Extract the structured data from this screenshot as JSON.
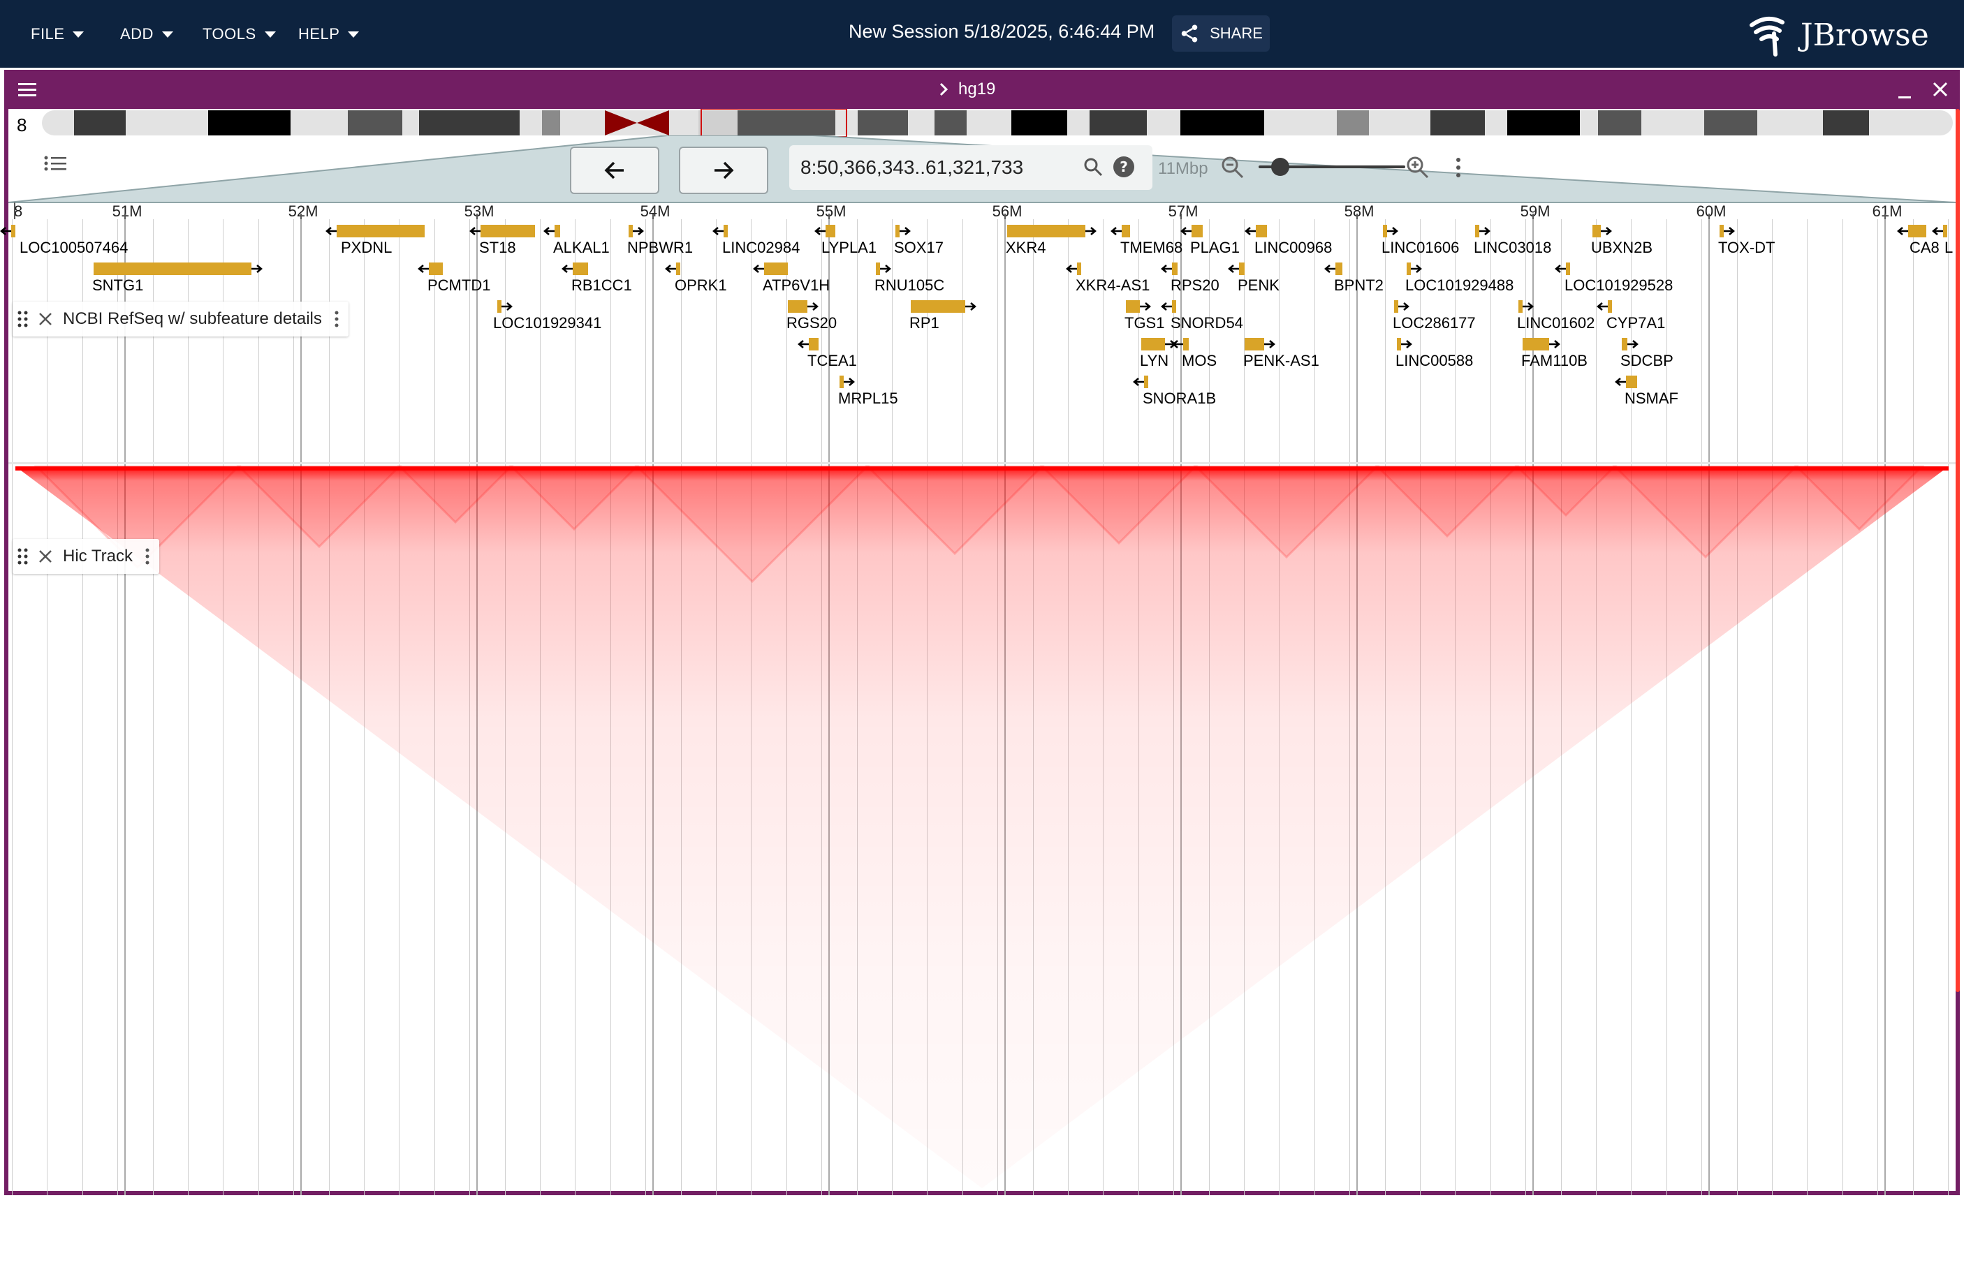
{
  "menu": {
    "file": "FILE",
    "add": "ADD",
    "tools": "TOOLS",
    "help": "HELP"
  },
  "session": {
    "title": "New Session 5/18/2025, 6:46:44 PM",
    "share_label": "SHARE"
  },
  "logo": {
    "text": "JBrowse"
  },
  "view": {
    "assembly": "hg19",
    "chromosome": "8",
    "location": "8:50,366,343..61,321,733",
    "bp_per_view": "11Mbp"
  },
  "ruler": {
    "chrom_tick": "8",
    "ticks": [
      "51M",
      "52M",
      "53M",
      "54M",
      "55M",
      "56M",
      "57M",
      "58M",
      "59M",
      "60M",
      "61M"
    ]
  },
  "tracks": {
    "refseq": {
      "name": "NCBI RefSeq w/ subfeature details",
      "features": [
        {
          "name": "LOC100507464",
          "strand": "-"
        },
        {
          "name": "SNTG1",
          "strand": "+"
        },
        {
          "name": "PXDNL",
          "strand": "-"
        },
        {
          "name": "PCMTD1",
          "strand": "-"
        },
        {
          "name": "ST18",
          "strand": "-"
        },
        {
          "name": "LOC101929341",
          "strand": "+"
        },
        {
          "name": "ALKAL1",
          "strand": "-"
        },
        {
          "name": "RB1CC1",
          "strand": "-"
        },
        {
          "name": "NPBWR1",
          "strand": "+"
        },
        {
          "name": "OPRK1",
          "strand": "-"
        },
        {
          "name": "LINC02984",
          "strand": "-"
        },
        {
          "name": "ATP6V1H",
          "strand": "-"
        },
        {
          "name": "RGS20",
          "strand": "+"
        },
        {
          "name": "TCEA1",
          "strand": "-"
        },
        {
          "name": "LYPLA1",
          "strand": "-"
        },
        {
          "name": "MRPL15",
          "strand": "+"
        },
        {
          "name": "SOX17",
          "strand": "+"
        },
        {
          "name": "RNU105C",
          "strand": "+"
        },
        {
          "name": "RP1",
          "strand": "+"
        },
        {
          "name": "XKR4",
          "strand": "+"
        },
        {
          "name": "XKR4-AS1",
          "strand": "-"
        },
        {
          "name": "TMEM68",
          "strand": "-"
        },
        {
          "name": "TGS1",
          "strand": "+"
        },
        {
          "name": "LYN",
          "strand": "+"
        },
        {
          "name": "SNORA1B",
          "strand": "-"
        },
        {
          "name": "PLAG1",
          "strand": "-"
        },
        {
          "name": "RPS20",
          "strand": "-"
        },
        {
          "name": "SNORD54",
          "strand": "-"
        },
        {
          "name": "MOS",
          "strand": "-"
        },
        {
          "name": "LINC00968",
          "strand": "-"
        },
        {
          "name": "PENK",
          "strand": "-"
        },
        {
          "name": "PENK-AS1",
          "strand": "+"
        },
        {
          "name": "BPNT2",
          "strand": "-"
        },
        {
          "name": "LINC01606",
          "strand": "+"
        },
        {
          "name": "LOC101929488",
          "strand": "+"
        },
        {
          "name": "LOC286177",
          "strand": "+"
        },
        {
          "name": "LINC00588",
          "strand": "+"
        },
        {
          "name": "LINC03018",
          "strand": "+"
        },
        {
          "name": "LINC01602",
          "strand": "+"
        },
        {
          "name": "FAM110B",
          "strand": "+"
        },
        {
          "name": "UBXN2B",
          "strand": "+"
        },
        {
          "name": "LOC101929528",
          "strand": "-"
        },
        {
          "name": "CYP7A1",
          "strand": "-"
        },
        {
          "name": "SDCBP",
          "strand": "+"
        },
        {
          "name": "NSMAF",
          "strand": "-"
        },
        {
          "name": "TOX-DT",
          "strand": "+"
        },
        {
          "name": "CA8",
          "strand": "-"
        },
        {
          "name": "L",
          "strand": "-"
        }
      ]
    },
    "hic": {
      "name": "Hic Track"
    }
  },
  "colors": {
    "appbar": "#0d233f",
    "view_header": "#721e63",
    "feature": "#d9a428",
    "hic": "#ff0000",
    "overview": "#cddbdd"
  }
}
